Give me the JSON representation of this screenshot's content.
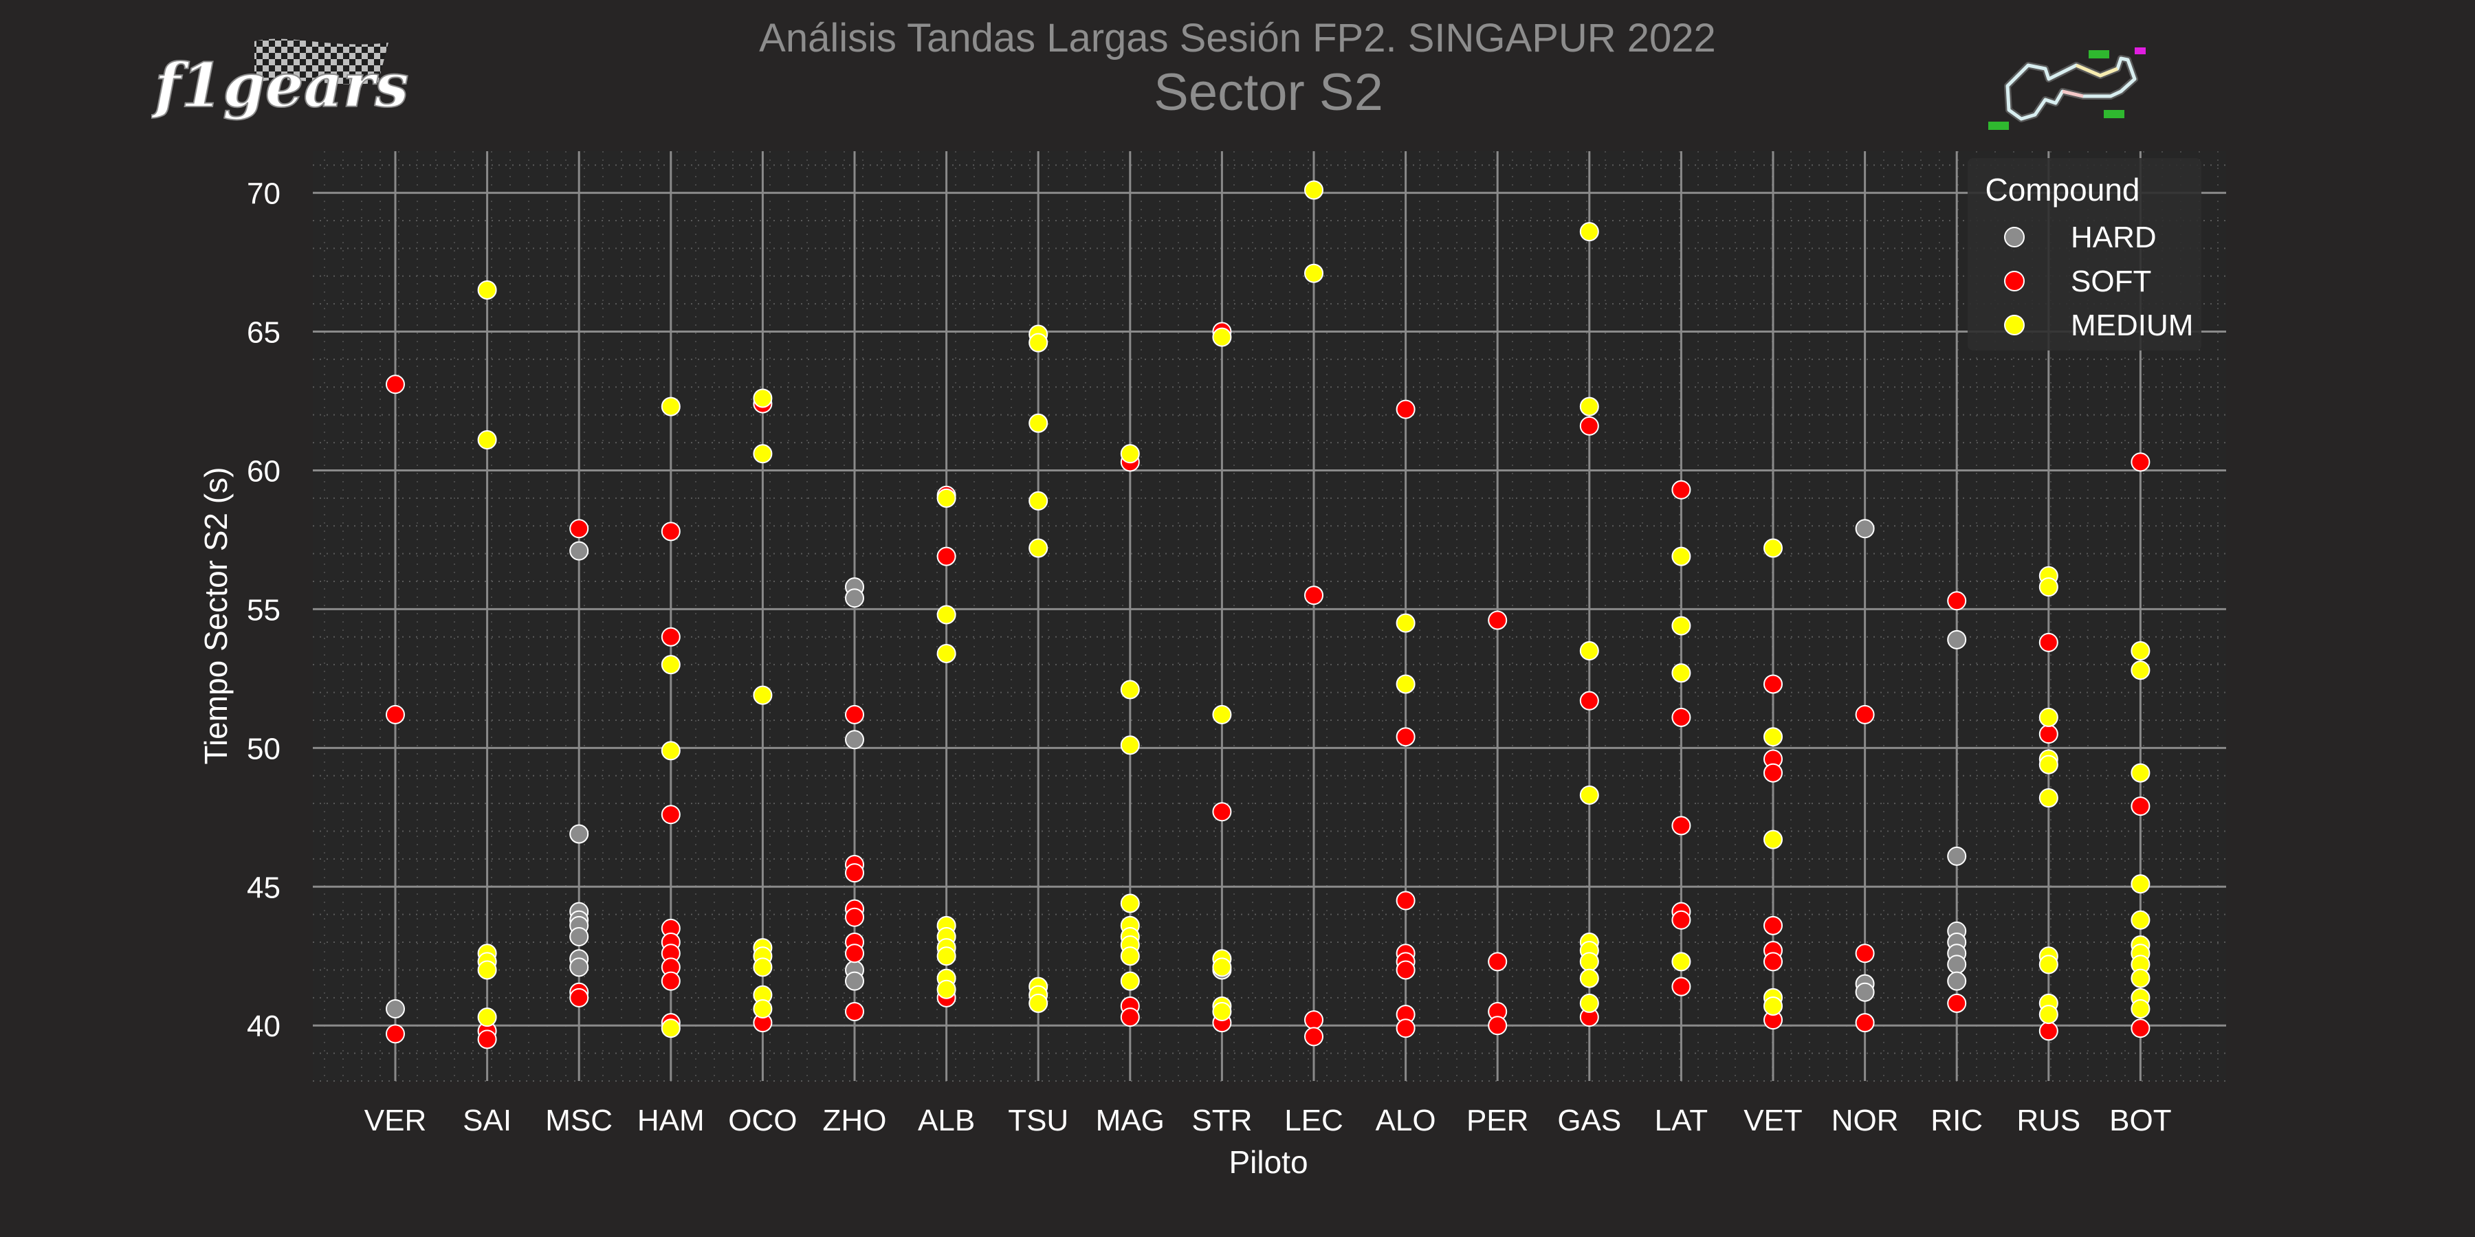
{
  "logo": {
    "text": "f1gears",
    "icon": "checkered-flag-logo"
  },
  "track_icon": "singapore-circuit-map-icon",
  "chart_data": {
    "type": "scatter",
    "title": "Análisis Tandas Largas Sesión FP2. SINGAPUR 2022",
    "subtitle": "Sector S2",
    "xlabel": "Piloto",
    "ylabel": "Tiempo Sector S2 (s)",
    "categories": [
      "VER",
      "SAI",
      "MSC",
      "HAM",
      "OCO",
      "ZHO",
      "ALB",
      "TSU",
      "MAG",
      "STR",
      "LEC",
      "ALO",
      "PER",
      "GAS",
      "LAT",
      "VET",
      "NOR",
      "RIC",
      "RUS",
      "BOT"
    ],
    "ylim": [
      38,
      71.5
    ],
    "yticks": [
      40,
      45,
      50,
      55,
      60,
      65,
      70
    ],
    "grid": true,
    "legend": {
      "title": "Compound",
      "placement": "top-right"
    },
    "colors": {
      "HARD": "#8c8c8c",
      "SOFT": "#ff0000",
      "MEDIUM": "#ffff00"
    },
    "series": [
      {
        "name": "HARD",
        "points": [
          [
            "VER",
            40.6
          ],
          [
            "MSC",
            57.1
          ],
          [
            "MSC",
            46.9
          ],
          [
            "MSC",
            44.1
          ],
          [
            "MSC",
            43.8
          ],
          [
            "MSC",
            43.6
          ],
          [
            "MSC",
            43.2
          ],
          [
            "MSC",
            42.4
          ],
          [
            "MSC",
            42.1
          ],
          [
            "ZHO",
            55.8
          ],
          [
            "ZHO",
            55.4
          ],
          [
            "ZHO",
            50.3
          ],
          [
            "ZHO",
            42.0
          ],
          [
            "ZHO",
            41.6
          ],
          [
            "STR",
            42.0
          ],
          [
            "NOR",
            57.9
          ],
          [
            "NOR",
            41.5
          ],
          [
            "NOR",
            41.2
          ],
          [
            "RIC",
            53.9
          ],
          [
            "RIC",
            46.1
          ],
          [
            "RIC",
            43.4
          ],
          [
            "RIC",
            43.0
          ],
          [
            "RIC",
            42.6
          ],
          [
            "RIC",
            42.2
          ],
          [
            "RIC",
            41.6
          ]
        ]
      },
      {
        "name": "SOFT",
        "points": [
          [
            "VER",
            63.1
          ],
          [
            "VER",
            51.2
          ],
          [
            "VER",
            39.7
          ],
          [
            "SAI",
            39.8
          ],
          [
            "SAI",
            39.5
          ],
          [
            "MSC",
            57.9
          ],
          [
            "MSC",
            41.2
          ],
          [
            "MSC",
            41.0
          ],
          [
            "HAM",
            57.8
          ],
          [
            "HAM",
            54.0
          ],
          [
            "HAM",
            47.6
          ],
          [
            "HAM",
            43.5
          ],
          [
            "HAM",
            43.0
          ],
          [
            "HAM",
            42.6
          ],
          [
            "HAM",
            42.1
          ],
          [
            "HAM",
            41.6
          ],
          [
            "HAM",
            40.1
          ],
          [
            "OCO",
            62.4
          ],
          [
            "OCO",
            40.1
          ],
          [
            "ZHO",
            51.2
          ],
          [
            "ZHO",
            45.8
          ],
          [
            "ZHO",
            45.5
          ],
          [
            "ZHO",
            44.2
          ],
          [
            "ZHO",
            43.9
          ],
          [
            "ZHO",
            43.0
          ],
          [
            "ZHO",
            42.6
          ],
          [
            "ZHO",
            40.5
          ],
          [
            "ALB",
            59.1
          ],
          [
            "ALB",
            56.9
          ],
          [
            "ALB",
            41.0
          ],
          [
            "MAG",
            60.3
          ],
          [
            "MAG",
            40.7
          ],
          [
            "MAG",
            40.3
          ],
          [
            "STR",
            65.0
          ],
          [
            "STR",
            47.7
          ],
          [
            "STR",
            40.1
          ],
          [
            "LEC",
            55.5
          ],
          [
            "LEC",
            40.2
          ],
          [
            "LEC",
            39.6
          ],
          [
            "ALO",
            62.2
          ],
          [
            "ALO",
            50.4
          ],
          [
            "ALO",
            44.5
          ],
          [
            "ALO",
            42.6
          ],
          [
            "ALO",
            42.3
          ],
          [
            "ALO",
            42.0
          ],
          [
            "ALO",
            40.4
          ],
          [
            "ALO",
            39.9
          ],
          [
            "PER",
            54.6
          ],
          [
            "PER",
            42.3
          ],
          [
            "PER",
            40.5
          ],
          [
            "PER",
            40.0
          ],
          [
            "GAS",
            61.6
          ],
          [
            "GAS",
            51.7
          ],
          [
            "GAS",
            40.3
          ],
          [
            "LAT",
            59.3
          ],
          [
            "LAT",
            51.1
          ],
          [
            "LAT",
            47.2
          ],
          [
            "LAT",
            44.1
          ],
          [
            "LAT",
            43.8
          ],
          [
            "LAT",
            41.4
          ],
          [
            "VET",
            52.3
          ],
          [
            "VET",
            49.6
          ],
          [
            "VET",
            49.1
          ],
          [
            "VET",
            43.6
          ],
          [
            "VET",
            42.7
          ],
          [
            "VET",
            42.3
          ],
          [
            "VET",
            40.2
          ],
          [
            "NOR",
            51.2
          ],
          [
            "NOR",
            42.6
          ],
          [
            "NOR",
            40.1
          ],
          [
            "RIC",
            55.3
          ],
          [
            "RIC",
            40.8
          ],
          [
            "RUS",
            53.8
          ],
          [
            "RUS",
            50.5
          ],
          [
            "RUS",
            39.8
          ],
          [
            "BOT",
            60.3
          ],
          [
            "BOT",
            47.9
          ],
          [
            "BOT",
            39.9
          ]
        ]
      },
      {
        "name": "MEDIUM",
        "points": [
          [
            "SAI",
            66.5
          ],
          [
            "SAI",
            61.1
          ],
          [
            "SAI",
            42.6
          ],
          [
            "SAI",
            42.3
          ],
          [
            "SAI",
            42.0
          ],
          [
            "SAI",
            40.3
          ],
          [
            "HAM",
            62.3
          ],
          [
            "HAM",
            53.0
          ],
          [
            "HAM",
            49.9
          ],
          [
            "HAM",
            39.9
          ],
          [
            "OCO",
            62.6
          ],
          [
            "OCO",
            60.6
          ],
          [
            "OCO",
            51.9
          ],
          [
            "OCO",
            42.8
          ],
          [
            "OCO",
            42.5
          ],
          [
            "OCO",
            42.1
          ],
          [
            "OCO",
            41.1
          ],
          [
            "OCO",
            40.6
          ],
          [
            "ALB",
            59.0
          ],
          [
            "ALB",
            54.8
          ],
          [
            "ALB",
            53.4
          ],
          [
            "ALB",
            43.6
          ],
          [
            "ALB",
            43.2
          ],
          [
            "ALB",
            42.8
          ],
          [
            "ALB",
            42.5
          ],
          [
            "ALB",
            41.7
          ],
          [
            "ALB",
            41.3
          ],
          [
            "TSU",
            64.9
          ],
          [
            "TSU",
            64.6
          ],
          [
            "TSU",
            61.7
          ],
          [
            "TSU",
            58.9
          ],
          [
            "TSU",
            57.2
          ],
          [
            "TSU",
            41.4
          ],
          [
            "TSU",
            41.1
          ],
          [
            "TSU",
            40.8
          ],
          [
            "MAG",
            60.6
          ],
          [
            "MAG",
            52.1
          ],
          [
            "MAG",
            50.1
          ],
          [
            "MAG",
            44.4
          ],
          [
            "MAG",
            43.6
          ],
          [
            "MAG",
            43.2
          ],
          [
            "MAG",
            42.9
          ],
          [
            "MAG",
            42.5
          ],
          [
            "MAG",
            41.6
          ],
          [
            "STR",
            64.8
          ],
          [
            "STR",
            51.2
          ],
          [
            "STR",
            42.4
          ],
          [
            "STR",
            42.1
          ],
          [
            "STR",
            40.7
          ],
          [
            "STR",
            40.5
          ],
          [
            "LEC",
            70.1
          ],
          [
            "LEC",
            67.1
          ],
          [
            "ALO",
            54.5
          ],
          [
            "ALO",
            52.3
          ],
          [
            "GAS",
            68.6
          ],
          [
            "GAS",
            62.3
          ],
          [
            "GAS",
            53.5
          ],
          [
            "GAS",
            48.3
          ],
          [
            "GAS",
            43.0
          ],
          [
            "GAS",
            42.7
          ],
          [
            "GAS",
            42.3
          ],
          [
            "GAS",
            41.7
          ],
          [
            "GAS",
            40.8
          ],
          [
            "LAT",
            56.9
          ],
          [
            "LAT",
            54.4
          ],
          [
            "LAT",
            52.7
          ],
          [
            "LAT",
            42.3
          ],
          [
            "VET",
            57.2
          ],
          [
            "VET",
            50.4
          ],
          [
            "VET",
            46.7
          ],
          [
            "VET",
            41.0
          ],
          [
            "VET",
            40.7
          ],
          [
            "RUS",
            56.2
          ],
          [
            "RUS",
            55.8
          ],
          [
            "RUS",
            51.1
          ],
          [
            "RUS",
            49.6
          ],
          [
            "RUS",
            49.4
          ],
          [
            "RUS",
            48.2
          ],
          [
            "RUS",
            42.5
          ],
          [
            "RUS",
            42.2
          ],
          [
            "RUS",
            40.8
          ],
          [
            "RUS",
            40.4
          ],
          [
            "BOT",
            53.5
          ],
          [
            "BOT",
            52.8
          ],
          [
            "BOT",
            49.1
          ],
          [
            "BOT",
            45.1
          ],
          [
            "BOT",
            43.8
          ],
          [
            "BOT",
            42.9
          ],
          [
            "BOT",
            42.6
          ],
          [
            "BOT",
            42.2
          ],
          [
            "BOT",
            41.7
          ],
          [
            "BOT",
            41.0
          ],
          [
            "BOT",
            40.6
          ]
        ]
      }
    ]
  }
}
